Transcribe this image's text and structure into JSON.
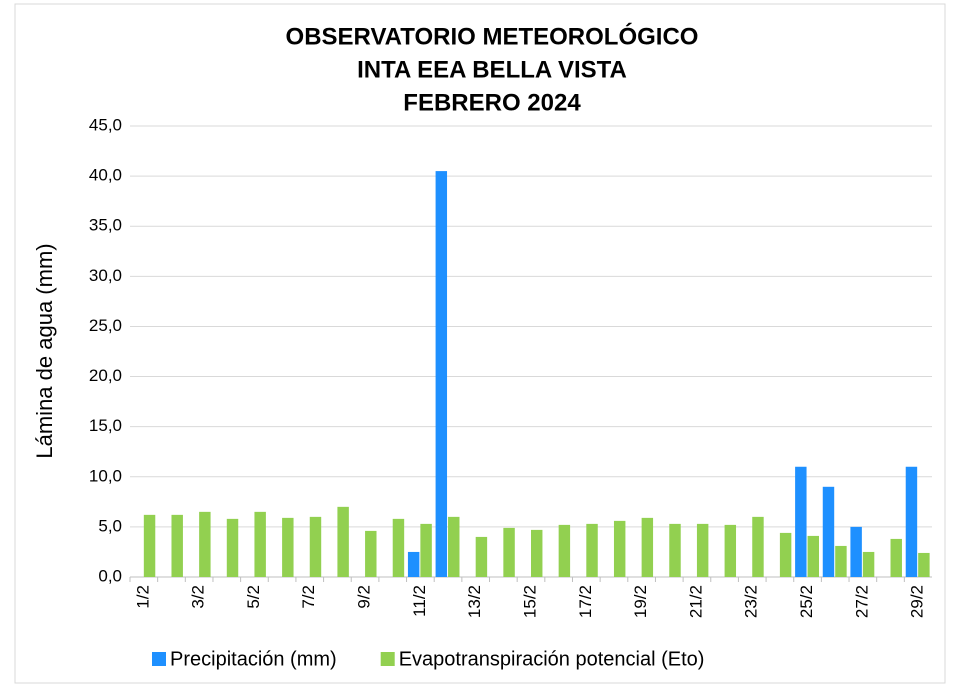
{
  "chart_data": {
    "type": "bar",
    "title": [
      "OBSERVATORIO METEOROLÓGICO",
      "INTA EEA BELLA VISTA",
      "FEBRERO 2024"
    ],
    "y_label": "Lámina de agua (mm)",
    "categories": [
      "1/2",
      null,
      "3/2",
      null,
      "5/2",
      null,
      "7/2",
      null,
      "9/2",
      null,
      "11/2",
      null,
      "13/2",
      null,
      "15/2",
      null,
      "17/2",
      null,
      "19/2",
      null,
      "21/2",
      null,
      "23/2",
      null,
      "25/2",
      null,
      "27/2",
      null,
      "29/2"
    ],
    "series": [
      {
        "name": "Precipitación (mm)",
        "color": "#1e90ff",
        "values": [
          0,
          0,
          0,
          0,
          0,
          0,
          0,
          0,
          0,
          0,
          2.5,
          40.5,
          0,
          0,
          0,
          0,
          0,
          0,
          0,
          0,
          0,
          0,
          0,
          0,
          11.0,
          9.0,
          5.0,
          0,
          11.0
        ]
      },
      {
        "name": "Evapotranspiración potencial (Eto)",
        "color": "#92d050",
        "values": [
          6.2,
          6.2,
          6.5,
          5.8,
          6.5,
          5.9,
          6.0,
          7.0,
          4.6,
          5.8,
          5.3,
          6.0,
          4.0,
          4.9,
          4.7,
          5.2,
          5.3,
          5.6,
          5.9,
          5.3,
          5.3,
          5.2,
          6.0,
          4.4,
          4.1,
          3.1,
          2.5,
          3.8,
          2.4
        ]
      }
    ],
    "ylim": [
      0,
      45
    ],
    "yticks": [
      {
        "value": 0,
        "label": "0,0"
      },
      {
        "value": 5,
        "label": "5,0"
      },
      {
        "value": 10,
        "label": "10,0"
      },
      {
        "value": 15,
        "label": "15,0"
      },
      {
        "value": 20,
        "label": "20,0"
      },
      {
        "value": 25,
        "label": "25,0"
      },
      {
        "value": 30,
        "label": "30,0"
      },
      {
        "value": 35,
        "label": "35,0"
      },
      {
        "value": 40,
        "label": "40,0"
      },
      {
        "value": 45,
        "label": "45,0"
      }
    ],
    "grid": true,
    "legend": "bottom"
  }
}
